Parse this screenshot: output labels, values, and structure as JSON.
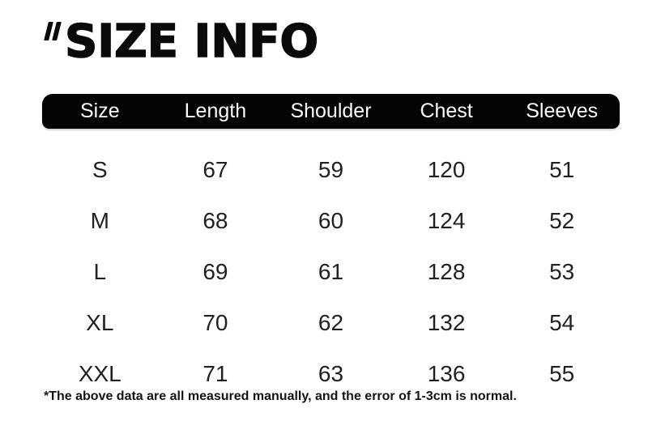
{
  "title": {
    "quote_mark": "“",
    "text": "SIZE INFO"
  },
  "table": {
    "headers": [
      "Size",
      "Length",
      "Shoulder",
      "Chest",
      "Sleeves"
    ],
    "rows": [
      [
        "S",
        "67",
        "59",
        "120",
        "51"
      ],
      [
        "M",
        "68",
        "60",
        "124",
        "52"
      ],
      [
        "L",
        "69",
        "61",
        "128",
        "53"
      ],
      [
        "XL",
        "70",
        "62",
        "132",
        "54"
      ],
      [
        "XXL",
        "71",
        "63",
        "136",
        "55"
      ]
    ]
  },
  "footnote": "*The above data are all measured manually, and the error of 1-3cm is normal.",
  "colors": {
    "page_bg": "#ffffff",
    "title_text": "#0a0a0a",
    "header_bg": "#040404",
    "header_text": "#fafafa",
    "body_text": "#212121"
  }
}
